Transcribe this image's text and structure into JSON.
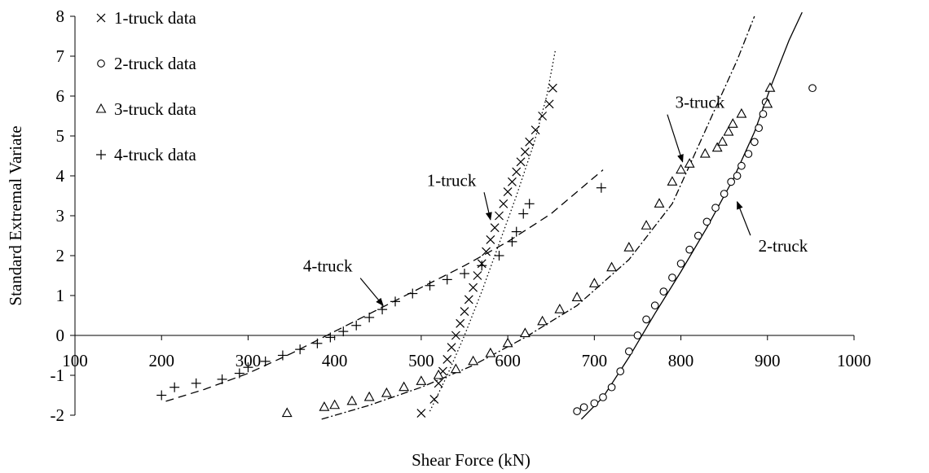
{
  "chart_data": {
    "type": "scatter",
    "xlabel": "Shear Force (kN)",
    "ylabel": "Standard Extremal Variate",
    "xlim": [
      100,
      1000
    ],
    "ylim": [
      -2,
      8
    ],
    "x_ticks": [
      100,
      200,
      300,
      400,
      500,
      600,
      700,
      800,
      900,
      1000
    ],
    "y_ticks": [
      -2,
      -1,
      0,
      1,
      2,
      3,
      4,
      5,
      6,
      7,
      8
    ],
    "grid": false,
    "legend_position": "top-left",
    "series": [
      {
        "name": "1-truck data",
        "marker": "x",
        "points": [
          [
            500,
            -1.95
          ],
          [
            515,
            -1.6
          ],
          [
            520,
            -1.2
          ],
          [
            525,
            -0.9
          ],
          [
            530,
            -0.6
          ],
          [
            535,
            -0.3
          ],
          [
            540,
            0.0
          ],
          [
            545,
            0.3
          ],
          [
            550,
            0.6
          ],
          [
            555,
            0.9
          ],
          [
            560,
            1.2
          ],
          [
            565,
            1.5
          ],
          [
            570,
            1.8
          ],
          [
            575,
            2.1
          ],
          [
            580,
            2.4
          ],
          [
            585,
            2.7
          ],
          [
            590,
            3.0
          ],
          [
            595,
            3.3
          ],
          [
            600,
            3.6
          ],
          [
            605,
            3.85
          ],
          [
            610,
            4.1
          ],
          [
            615,
            4.35
          ],
          [
            620,
            4.6
          ],
          [
            625,
            4.85
          ],
          [
            632,
            5.15
          ],
          [
            640,
            5.5
          ],
          [
            648,
            5.8
          ],
          [
            652,
            6.2
          ]
        ]
      },
      {
        "name": "2-truck data",
        "marker": "circle",
        "points": [
          [
            680,
            -1.9
          ],
          [
            688,
            -1.8
          ],
          [
            700,
            -1.7
          ],
          [
            710,
            -1.55
          ],
          [
            720,
            -1.3
          ],
          [
            730,
            -0.9
          ],
          [
            740,
            -0.4
          ],
          [
            750,
            0.0
          ],
          [
            760,
            0.4
          ],
          [
            770,
            0.75
          ],
          [
            780,
            1.1
          ],
          [
            790,
            1.45
          ],
          [
            800,
            1.8
          ],
          [
            810,
            2.15
          ],
          [
            820,
            2.5
          ],
          [
            830,
            2.85
          ],
          [
            840,
            3.2
          ],
          [
            850,
            3.55
          ],
          [
            858,
            3.85
          ],
          [
            865,
            4.0
          ],
          [
            870,
            4.25
          ],
          [
            878,
            4.55
          ],
          [
            885,
            4.85
          ],
          [
            890,
            5.2
          ],
          [
            895,
            5.55
          ],
          [
            898,
            5.85
          ],
          [
            952,
            6.2
          ]
        ]
      },
      {
        "name": "3-truck data",
        "marker": "triangle",
        "points": [
          [
            345,
            -1.95
          ],
          [
            388,
            -1.8
          ],
          [
            400,
            -1.75
          ],
          [
            420,
            -1.65
          ],
          [
            440,
            -1.55
          ],
          [
            460,
            -1.45
          ],
          [
            480,
            -1.3
          ],
          [
            500,
            -1.15
          ],
          [
            520,
            -1.0
          ],
          [
            540,
            -0.85
          ],
          [
            560,
            -0.65
          ],
          [
            580,
            -0.45
          ],
          [
            600,
            -0.2
          ],
          [
            620,
            0.05
          ],
          [
            640,
            0.35
          ],
          [
            660,
            0.65
          ],
          [
            680,
            0.95
          ],
          [
            700,
            1.3
          ],
          [
            720,
            1.7
          ],
          [
            740,
            2.2
          ],
          [
            760,
            2.75
          ],
          [
            775,
            3.3
          ],
          [
            790,
            3.85
          ],
          [
            800,
            4.15
          ],
          [
            810,
            4.3
          ],
          [
            828,
            4.55
          ],
          [
            842,
            4.7
          ],
          [
            848,
            4.85
          ],
          [
            855,
            5.1
          ],
          [
            860,
            5.3
          ],
          [
            870,
            5.55
          ],
          [
            900,
            5.8
          ],
          [
            903,
            6.2
          ]
        ]
      },
      {
        "name": "4-truck data",
        "marker": "plus",
        "points": [
          [
            200,
            -1.5
          ],
          [
            215,
            -1.3
          ],
          [
            240,
            -1.2
          ],
          [
            270,
            -1.1
          ],
          [
            290,
            -0.95
          ],
          [
            300,
            -0.8
          ],
          [
            320,
            -0.65
          ],
          [
            340,
            -0.5
          ],
          [
            360,
            -0.35
          ],
          [
            380,
            -0.2
          ],
          [
            395,
            -0.05
          ],
          [
            410,
            0.1
          ],
          [
            425,
            0.25
          ],
          [
            440,
            0.45
          ],
          [
            455,
            0.65
          ],
          [
            470,
            0.85
          ],
          [
            490,
            1.05
          ],
          [
            510,
            1.25
          ],
          [
            530,
            1.4
          ],
          [
            550,
            1.55
          ],
          [
            570,
            1.75
          ],
          [
            590,
            2.0
          ],
          [
            605,
            2.35
          ],
          [
            610,
            2.6
          ],
          [
            618,
            3.05
          ],
          [
            625,
            3.3
          ],
          [
            708,
            3.7
          ]
        ]
      }
    ],
    "fits": [
      {
        "series": "1-truck data",
        "style": "dotted",
        "points": [
          [
            510,
            -1.9
          ],
          [
            530,
            -1.0
          ],
          [
            550,
            0.0
          ],
          [
            570,
            1.1
          ],
          [
            590,
            2.3
          ],
          [
            610,
            3.5
          ],
          [
            630,
            4.8
          ],
          [
            645,
            6.0
          ],
          [
            655,
            7.15
          ]
        ]
      },
      {
        "series": "2-truck data",
        "style": "solid",
        "points": [
          [
            685,
            -2.1
          ],
          [
            710,
            -1.55
          ],
          [
            740,
            -0.55
          ],
          [
            770,
            0.55
          ],
          [
            800,
            1.6
          ],
          [
            830,
            2.7
          ],
          [
            860,
            3.9
          ],
          [
            885,
            5.1
          ],
          [
            905,
            6.3
          ],
          [
            925,
            7.4
          ],
          [
            940,
            8.1
          ]
        ]
      },
      {
        "series": "3-truck data",
        "style": "dash-dot",
        "points": [
          [
            385,
            -2.1
          ],
          [
            440,
            -1.75
          ],
          [
            500,
            -1.3
          ],
          [
            560,
            -0.75
          ],
          [
            620,
            -0.05
          ],
          [
            680,
            0.75
          ],
          [
            740,
            1.9
          ],
          [
            790,
            3.3
          ],
          [
            815,
            4.5
          ],
          [
            840,
            5.7
          ],
          [
            865,
            6.9
          ],
          [
            885,
            8.0
          ]
        ]
      },
      {
        "series": "4-truck data",
        "style": "dashed",
        "points": [
          [
            205,
            -1.65
          ],
          [
            250,
            -1.35
          ],
          [
            300,
            -0.95
          ],
          [
            350,
            -0.45
          ],
          [
            400,
            0.1
          ],
          [
            450,
            0.65
          ],
          [
            500,
            1.2
          ],
          [
            550,
            1.75
          ],
          [
            600,
            2.35
          ],
          [
            650,
            3.05
          ],
          [
            710,
            4.15
          ]
        ]
      }
    ],
    "annotations": [
      {
        "text": "1-truck",
        "label_at": [
          535,
          3.75
        ],
        "arrow_to": [
          580,
          2.9
        ]
      },
      {
        "text": "2-truck",
        "label_at": [
          918,
          2.1
        ],
        "arrow_to": [
          865,
          3.35
        ]
      },
      {
        "text": "3-truck",
        "label_at": [
          822,
          5.7
        ],
        "arrow_to": [
          802,
          4.35
        ]
      },
      {
        "text": "4-truck",
        "label_at": [
          392,
          1.6
        ],
        "arrow_to": [
          456,
          0.75
        ]
      }
    ]
  }
}
